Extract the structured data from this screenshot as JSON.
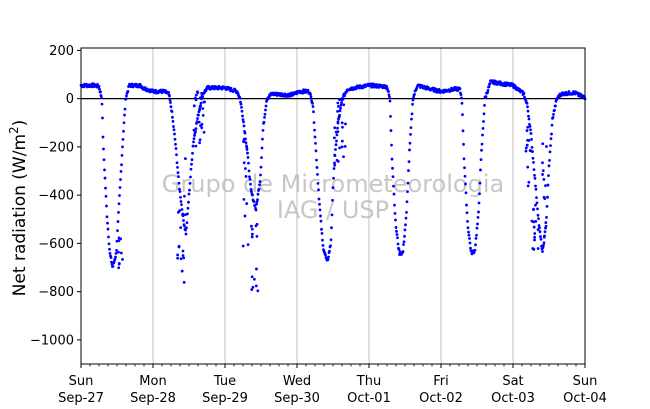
{
  "chart_data": {
    "type": "scatter",
    "title": "",
    "xlabel": "",
    "ylabel": "Net radiation (W/m²)",
    "ylabel_parts": {
      "main": "Net radiation (W/m",
      "sup": "2",
      "end": ")"
    },
    "ylim": [
      -1100,
      210
    ],
    "yticks": [
      200,
      0,
      -200,
      -400,
      -600,
      -800,
      -1000
    ],
    "ytick_labels": [
      "200",
      "0",
      "−200",
      "−400",
      "−600",
      "−800",
      "−1000"
    ],
    "xlim": [
      0,
      7
    ],
    "x_unit": "days since Sun Sep-27 00:00",
    "xticks": [
      0,
      1,
      2,
      3,
      4,
      5,
      6,
      7
    ],
    "xtick_labels": [
      [
        "Sun",
        "Sep-27"
      ],
      [
        "Mon",
        "Sep-28"
      ],
      [
        "Tue",
        "Sep-29"
      ],
      [
        "Wed",
        "Sep-30"
      ],
      [
        "Thu",
        "Oct-01"
      ],
      [
        "Fri",
        "Oct-02"
      ],
      [
        "Sat",
        "Oct-03"
      ],
      [
        "Sun",
        "Oct-04"
      ]
    ],
    "grid": "vertical",
    "zero_line": true,
    "marker_color": "#0000ff",
    "watermark": [
      "Grupo de Micrometeorologia",
      "IAG / USP"
    ],
    "series": [
      {
        "name": "",
        "x_step_days": 0.0069444,
        "envelope": [
          [
            0.0,
            55
          ],
          [
            0.2,
            55
          ],
          [
            0.25,
            50
          ],
          [
            0.29,
            0
          ],
          [
            0.31,
            -200
          ],
          [
            0.36,
            -480
          ],
          [
            0.4,
            -640
          ],
          [
            0.44,
            -700
          ],
          [
            0.49,
            -640
          ],
          [
            0.53,
            -430
          ],
          [
            0.58,
            -180
          ],
          [
            0.62,
            0
          ],
          [
            0.67,
            55
          ],
          [
            0.83,
            55
          ],
          [
            0.86,
            45
          ],
          [
            1.0,
            30
          ],
          [
            1.15,
            30
          ],
          [
            1.22,
            20
          ],
          [
            1.26,
            -50
          ],
          [
            1.31,
            -180
          ],
          [
            1.36,
            -350
          ],
          [
            1.42,
            -500
          ],
          [
            1.46,
            -560
          ],
          [
            1.5,
            -400
          ],
          [
            1.56,
            -180
          ],
          [
            1.62,
            -80
          ],
          [
            1.69,
            20
          ],
          [
            1.76,
            45
          ],
          [
            2.0,
            45
          ],
          [
            2.17,
            30
          ],
          [
            2.21,
            0
          ],
          [
            2.25,
            -80
          ],
          [
            2.31,
            -220
          ],
          [
            2.36,
            -380
          ],
          [
            2.43,
            -460
          ],
          [
            2.49,
            -330
          ],
          [
            2.53,
            -120
          ],
          [
            2.58,
            0
          ],
          [
            2.65,
            20
          ],
          [
            2.9,
            15
          ],
          [
            2.97,
            20
          ],
          [
            3.03,
            30
          ],
          [
            3.17,
            30
          ],
          [
            3.22,
            -20
          ],
          [
            3.26,
            -200
          ],
          [
            3.31,
            -430
          ],
          [
            3.36,
            -610
          ],
          [
            3.42,
            -680
          ],
          [
            3.47,
            -600
          ],
          [
            3.51,
            -300
          ],
          [
            3.57,
            -100
          ],
          [
            3.63,
            0
          ],
          [
            3.7,
            40
          ],
          [
            4.0,
            55
          ],
          [
            4.25,
            50
          ],
          [
            4.29,
            0
          ],
          [
            4.32,
            -250
          ],
          [
            4.37,
            -520
          ],
          [
            4.42,
            -640
          ],
          [
            4.47,
            -640
          ],
          [
            4.52,
            -480
          ],
          [
            4.56,
            -230
          ],
          [
            4.61,
            0
          ],
          [
            4.67,
            55
          ],
          [
            4.85,
            40
          ],
          [
            5.0,
            30
          ],
          [
            5.2,
            40
          ],
          [
            5.26,
            40
          ],
          [
            5.29,
            0
          ],
          [
            5.32,
            -250
          ],
          [
            5.37,
            -520
          ],
          [
            5.42,
            -640
          ],
          [
            5.47,
            -630
          ],
          [
            5.52,
            -480
          ],
          [
            5.56,
            -230
          ],
          [
            5.61,
            0
          ],
          [
            5.69,
            70
          ],
          [
            6.0,
            55
          ],
          [
            6.15,
            20
          ],
          [
            6.2,
            -30
          ],
          [
            6.25,
            -150
          ],
          [
            6.31,
            -350
          ],
          [
            6.36,
            -520
          ],
          [
            6.41,
            -640
          ],
          [
            6.46,
            -520
          ],
          [
            6.5,
            -280
          ],
          [
            6.55,
            -80
          ],
          [
            6.61,
            0
          ],
          [
            6.67,
            20
          ],
          [
            6.85,
            25
          ],
          [
            6.95,
            10
          ],
          [
            7.0,
            5
          ]
        ],
        "scatter_clusters": [
          [
            0.52,
            0.58,
            -560,
            -720
          ],
          [
            1.34,
            1.46,
            -200,
            -780
          ],
          [
            1.55,
            1.72,
            30,
            -200
          ],
          [
            2.25,
            2.33,
            -150,
            -620
          ],
          [
            2.36,
            2.46,
            -520,
            -800
          ],
          [
            3.52,
            3.68,
            0,
            -280
          ],
          [
            6.18,
            6.26,
            -100,
            -380
          ],
          [
            6.25,
            6.35,
            -420,
            -670
          ],
          [
            6.4,
            6.48,
            -130,
            -620
          ]
        ]
      }
    ]
  }
}
